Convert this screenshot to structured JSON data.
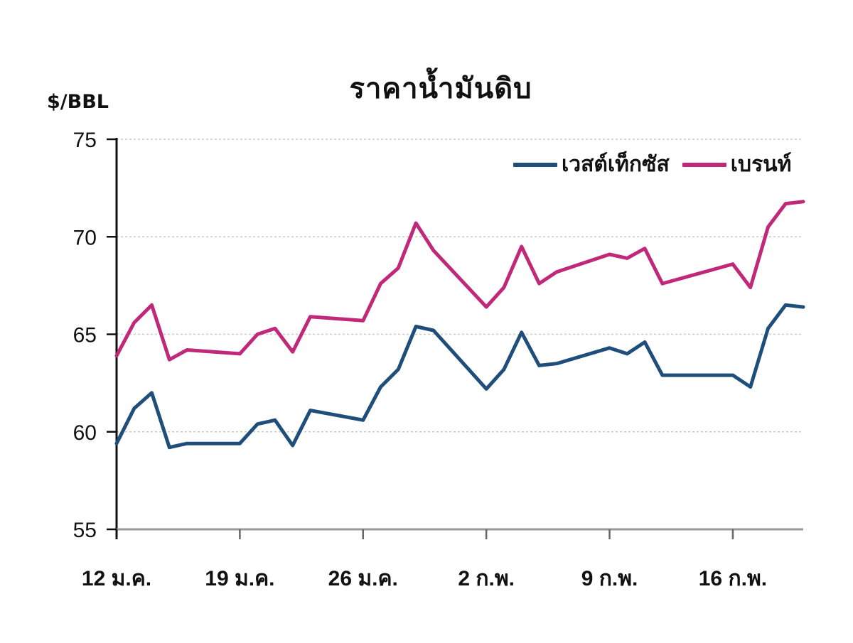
{
  "chart_data": {
    "type": "line",
    "title": "ราคาน้ำมันดิบ",
    "ylabel": "$/BBL",
    "xlabel": "",
    "ylim": [
      55,
      75
    ],
    "yticks": [
      55,
      60,
      65,
      70,
      75
    ],
    "grid": "horizontal dotted",
    "legend_position": "top-right",
    "xtick_labels": [
      "12 ม.ค.",
      "19 ม.ค.",
      "26 ม.ค.",
      "2 ก.พ.",
      "9 ก.พ.",
      "16 ก.พ."
    ],
    "xtick_day_offsets": [
      0,
      7,
      14,
      21,
      28,
      35
    ],
    "x_day_offsets": [
      0,
      1,
      2,
      3,
      4,
      7,
      8,
      9,
      10,
      11,
      14,
      15,
      16,
      17,
      18,
      21,
      22,
      23,
      24,
      25,
      28,
      29,
      30,
      31,
      35,
      36,
      37,
      38,
      39
    ],
    "x_dates": [
      "12 ม.ค.",
      "13 ม.ค.",
      "14 ม.ค.",
      "15 ม.ค.",
      "16 ม.ค.",
      "19 ม.ค.",
      "20 ม.ค.",
      "21 ม.ค.",
      "22 ม.ค.",
      "23 ม.ค.",
      "26 ม.ค.",
      "27 ม.ค.",
      "28 ม.ค.",
      "29 ม.ค.",
      "30 ม.ค.",
      "2 ก.พ.",
      "3 ก.พ.",
      "4 ก.พ.",
      "5 ก.พ.",
      "6 ก.พ.",
      "9 ก.พ.",
      "10 ก.พ.",
      "11 ก.พ.",
      "12 ก.พ.",
      "16 ก.พ.",
      "17 ก.พ.",
      "18 ก.พ.",
      "19 ก.พ.",
      "20 ก.พ."
    ],
    "x_span_days": 39,
    "series": [
      {
        "name": "เวสต์เท็กซัส",
        "color": "#1f4e7a",
        "values": [
          59.4,
          61.2,
          62.0,
          59.2,
          59.4,
          59.4,
          60.4,
          60.6,
          59.3,
          61.1,
          60.6,
          62.3,
          63.2,
          65.4,
          65.2,
          62.2,
          63.2,
          65.1,
          63.4,
          63.5,
          64.3,
          64.0,
          64.6,
          62.9,
          62.9,
          62.3,
          65.3,
          66.5,
          66.4
        ]
      },
      {
        "name": "เบรนท์",
        "color": "#c0287a",
        "values": [
          63.9,
          65.6,
          66.5,
          63.7,
          64.2,
          64.0,
          65.0,
          65.3,
          64.1,
          65.9,
          65.7,
          67.6,
          68.4,
          70.7,
          69.3,
          66.4,
          67.4,
          69.5,
          67.6,
          68.2,
          69.1,
          68.9,
          69.4,
          67.6,
          68.6,
          67.4,
          70.5,
          71.7,
          71.8
        ]
      }
    ]
  }
}
